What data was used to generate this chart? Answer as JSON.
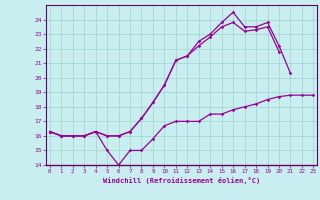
{
  "xlabel": "Windchill (Refroidissement éolien,°C)",
  "bg_color": "#c8eef0",
  "grid_color": "#9ed4ce",
  "line_color": "#990099",
  "spine_color": "#660066",
  "hours": [
    0,
    1,
    2,
    3,
    4,
    5,
    6,
    7,
    8,
    9,
    10,
    11,
    12,
    13,
    14,
    15,
    16,
    17,
    18,
    19,
    20,
    21,
    22,
    23
  ],
  "line1": [
    16.3,
    16.0,
    16.0,
    16.0,
    16.3,
    15.0,
    14.0,
    15.0,
    15.0,
    15.8,
    16.7,
    17.0,
    17.0,
    17.0,
    17.5,
    17.5,
    17.8,
    18.0,
    18.2,
    18.5,
    18.7,
    18.8,
    18.8,
    18.8
  ],
  "line2": [
    16.3,
    16.0,
    16.0,
    16.0,
    16.3,
    16.0,
    16.0,
    16.3,
    17.2,
    18.3,
    19.5,
    21.2,
    21.5,
    22.5,
    23.0,
    23.8,
    24.5,
    23.5,
    23.5,
    23.8,
    22.2,
    20.3,
    null,
    null
  ],
  "line3": [
    16.3,
    16.0,
    16.0,
    16.0,
    16.3,
    16.0,
    16.0,
    16.3,
    17.2,
    18.3,
    19.5,
    21.2,
    21.5,
    22.2,
    22.8,
    23.5,
    23.8,
    23.2,
    23.3,
    23.5,
    21.8,
    null,
    null,
    null
  ],
  "ylim": [
    14,
    25
  ],
  "yticks": [
    14,
    15,
    16,
    17,
    18,
    19,
    20,
    21,
    22,
    23,
    24
  ],
  "xlim": [
    -0.3,
    23.3
  ],
  "xticks": [
    0,
    1,
    2,
    3,
    4,
    5,
    6,
    7,
    8,
    9,
    10,
    11,
    12,
    13,
    14,
    15,
    16,
    17,
    18,
    19,
    20,
    21,
    22,
    23
  ]
}
